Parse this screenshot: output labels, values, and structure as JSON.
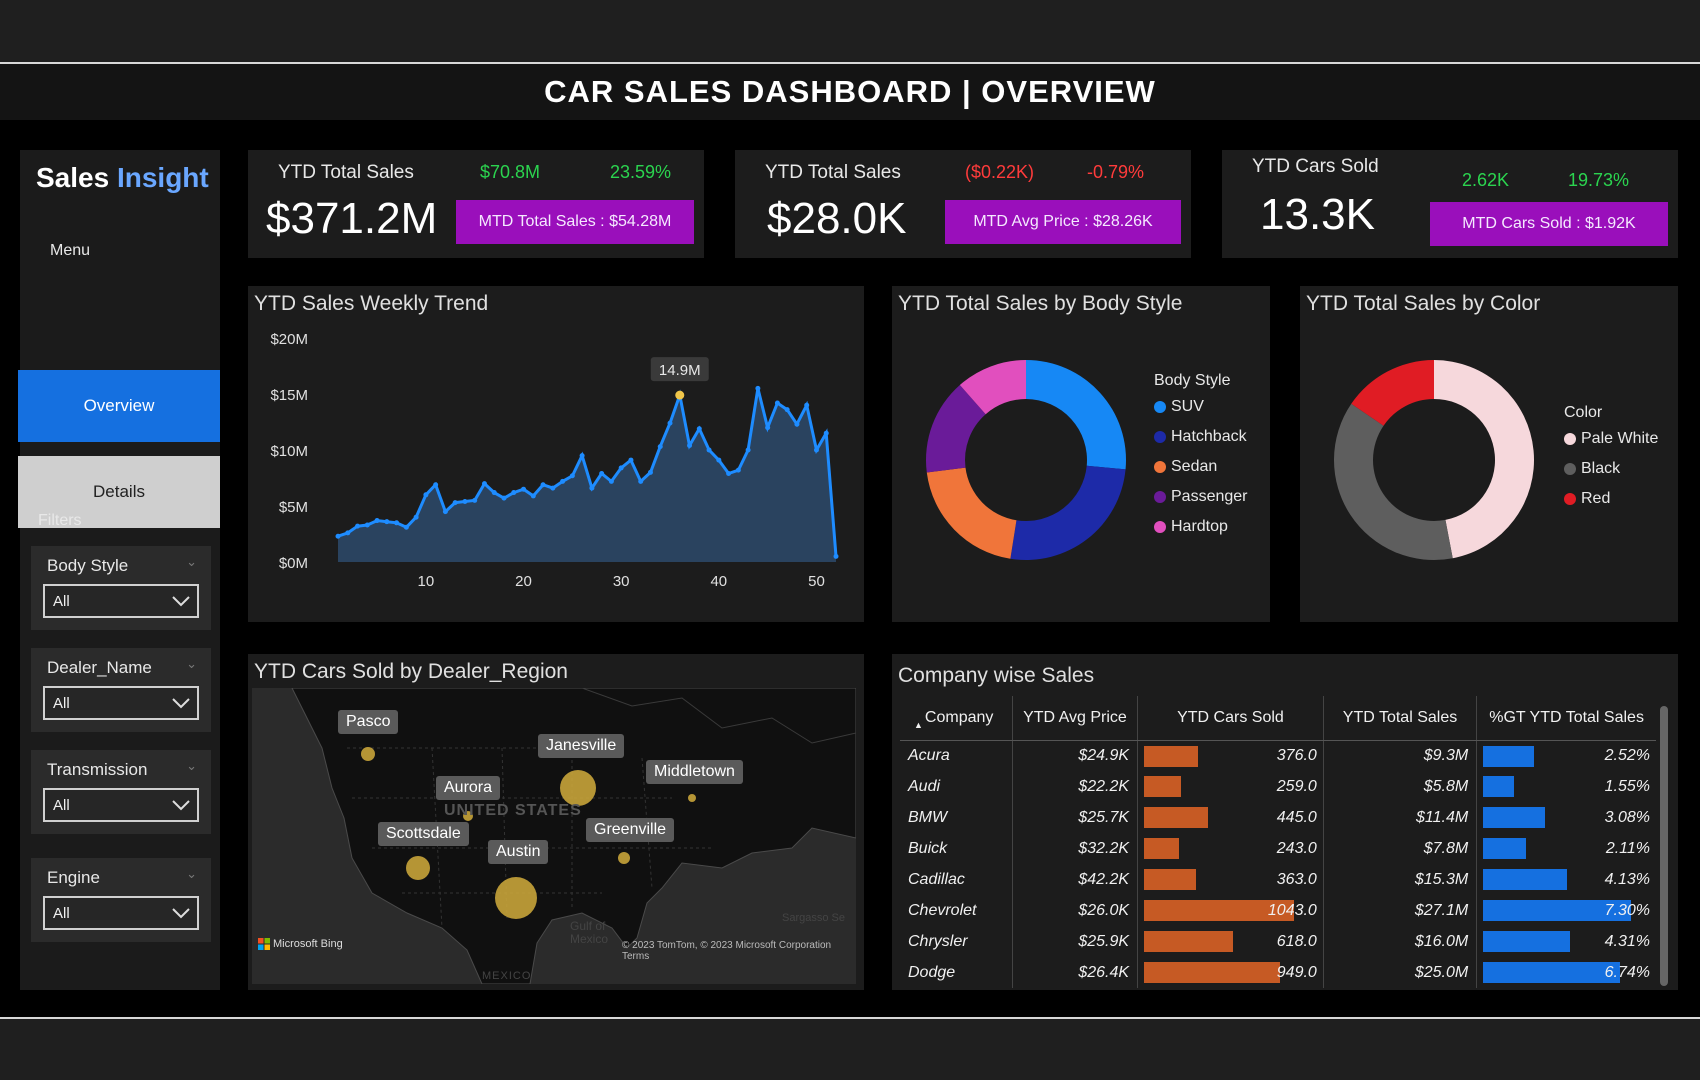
{
  "header": {
    "title": "CAR SALES DASHBOARD | OVERVIEW"
  },
  "sidebar": {
    "brand_part1": "Sales",
    "brand_part2": "Insight",
    "menu_label": "Menu",
    "nav_overview": "Overview",
    "nav_details": "Details",
    "filters_label": "Filters",
    "filters": [
      {
        "label": "Body Style",
        "value": "All"
      },
      {
        "label": "Dealer_Name",
        "value": "All"
      },
      {
        "label": "Transmission",
        "value": "All"
      },
      {
        "label": "Engine",
        "value": "All"
      }
    ]
  },
  "kpis": [
    {
      "label": "YTD Total Sales",
      "value": "$371.2M",
      "delta_value": "$70.8M",
      "delta_pct": "23.59%",
      "badge": "MTD Total Sales : $54.28M"
    },
    {
      "label": "YTD Total Sales",
      "value": "$28.0K",
      "delta_value": "($0.22K)",
      "delta_pct": "-0.79%",
      "badge": "MTD Avg Price : $28.26K"
    },
    {
      "label": "YTD Cars Sold",
      "value": "13.3K",
      "delta_value": "2.62K",
      "delta_pct": "19.73%",
      "badge": "MTD Cars Sold : $1.92K"
    }
  ],
  "colors": {
    "green": "#2bd44f",
    "red": "#ff3b3b",
    "badge": "#9a0fbb",
    "accent": "#1570e0"
  },
  "panels": {
    "weekly_trend_title": "YTD Sales Weekly Trend",
    "body_style_title": "YTD Total Sales by Body Style",
    "color_title": "YTD Total Sales by Color",
    "map_title": "YTD Cars Sold by Dealer_Region",
    "company_title": "Company wise Sales"
  },
  "map": {
    "labels": [
      "Pasco",
      "Janesville",
      "Middletown",
      "Aurora",
      "Scottsdale",
      "Greenville",
      "Austin"
    ],
    "country_label": "UNITED STATES",
    "attribution": "Microsoft Bing",
    "gulf_label": "Gulf of Mexico",
    "mexico_label": "MEXICO",
    "sea_label": "Sargasso Se",
    "terms": "© 2023 TomTom, © 2023 Microsoft Corporation Terms"
  },
  "table": {
    "columns": [
      "Company",
      "YTD Avg Price",
      "YTD Cars Sold",
      "YTD Total Sales",
      "%GT YTD Total Sales"
    ],
    "rows": [
      {
        "company": "Acura",
        "avg_price": "$24.9K",
        "cars_sold": "376.0",
        "cars_sold_num": 376,
        "total_sales": "$9.3M",
        "pct": "2.52%",
        "pct_num": 2.52
      },
      {
        "company": "Audi",
        "avg_price": "$22.2K",
        "cars_sold": "259.0",
        "cars_sold_num": 259,
        "total_sales": "$5.8M",
        "pct": "1.55%",
        "pct_num": 1.55
      },
      {
        "company": "BMW",
        "avg_price": "$25.7K",
        "cars_sold": "445.0",
        "cars_sold_num": 445,
        "total_sales": "$11.4M",
        "pct": "3.08%",
        "pct_num": 3.08
      },
      {
        "company": "Buick",
        "avg_price": "$32.2K",
        "cars_sold": "243.0",
        "cars_sold_num": 243,
        "total_sales": "$7.8M",
        "pct": "2.11%",
        "pct_num": 2.11
      },
      {
        "company": "Cadillac",
        "avg_price": "$42.2K",
        "cars_sold": "363.0",
        "cars_sold_num": 363,
        "total_sales": "$15.3M",
        "pct": "4.13%",
        "pct_num": 4.13
      },
      {
        "company": "Chevrolet",
        "avg_price": "$26.0K",
        "cars_sold": "1043.0",
        "cars_sold_num": 1043,
        "total_sales": "$27.1M",
        "pct": "7.30%",
        "pct_num": 7.3
      },
      {
        "company": "Chrysler",
        "avg_price": "$25.9K",
        "cars_sold": "618.0",
        "cars_sold_num": 618,
        "total_sales": "$16.0M",
        "pct": "4.31%",
        "pct_num": 4.31
      },
      {
        "company": "Dodge",
        "avg_price": "$26.4K",
        "cars_sold": "949.0",
        "cars_sold_num": 949,
        "total_sales": "$25.0M",
        "pct": "6.74%",
        "pct_num": 6.74
      }
    ]
  },
  "chart_data": [
    {
      "type": "area",
      "title": "YTD Sales Weekly Trend",
      "xlabel": "",
      "ylabel": "",
      "x_ticks": [
        10,
        20,
        30,
        40,
        50
      ],
      "y_ticks": [
        "$0M",
        "$5M",
        "$10M",
        "$15M",
        "$20M"
      ],
      "ylim": [
        0,
        20
      ],
      "xlim": [
        1,
        52
      ],
      "annotation": "14.9M",
      "annotation_week": 36,
      "x": [
        1,
        2,
        3,
        4,
        5,
        6,
        7,
        8,
        9,
        10,
        11,
        12,
        13,
        14,
        15,
        16,
        17,
        18,
        19,
        20,
        21,
        22,
        23,
        24,
        25,
        26,
        27,
        28,
        29,
        30,
        31,
        32,
        33,
        34,
        35,
        36,
        37,
        38,
        39,
        40,
        41,
        42,
        43,
        44,
        45,
        46,
        47,
        48,
        49,
        50,
        51,
        52
      ],
      "values": [
        2.3,
        2.6,
        3.2,
        3.3,
        3.7,
        3.6,
        3.5,
        3.1,
        4.0,
        6.0,
        6.9,
        4.5,
        5.3,
        5.4,
        5.5,
        7.0,
        6.2,
        5.7,
        6.2,
        6.5,
        5.9,
        6.9,
        6.6,
        7.2,
        7.7,
        9.5,
        6.6,
        7.9,
        7.2,
        8.4,
        9.1,
        7.2,
        8.0,
        10.3,
        12.4,
        14.9,
        10.4,
        11.9,
        10.0,
        9.1,
        7.9,
        8.2,
        10.0,
        15.5,
        12.0,
        14.2,
        13.6,
        12.3,
        14.0,
        10.0,
        11.5,
        0.5
      ]
    },
    {
      "type": "pie",
      "title": "YTD Total Sales by Body Style",
      "legend_title": "Body Style",
      "categories": [
        "SUV",
        "Hatchback",
        "Sedan",
        "Passenger",
        "Hardtop"
      ],
      "values": [
        26.5,
        26.0,
        20.5,
        15.5,
        11.5
      ],
      "colors": [
        "#1688f5",
        "#1d2aa8",
        "#f0753a",
        "#6a1b99",
        "#e14fbe"
      ]
    },
    {
      "type": "pie",
      "title": "YTD Total Sales by Color",
      "legend_title": "Color",
      "categories": [
        "Pale White",
        "Black",
        "Red"
      ],
      "values": [
        47.0,
        37.5,
        15.5
      ],
      "colors": [
        "#f6d8dc",
        "#5e5e5e",
        "#e01c24"
      ]
    },
    {
      "type": "table",
      "title": "Company wise Sales",
      "columns": [
        "Company",
        "YTD Avg Price",
        "YTD Cars Sold",
        "YTD Total Sales",
        "%GT YTD Total Sales"
      ],
      "cars_sold": [
        376,
        259,
        445,
        243,
        363,
        1043,
        618,
        949
      ],
      "pct_gt": [
        2.52,
        1.55,
        3.08,
        2.11,
        4.13,
        7.3,
        4.31,
        6.74
      ]
    }
  ]
}
